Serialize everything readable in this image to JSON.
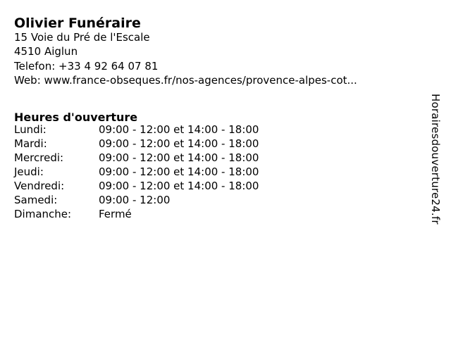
{
  "business": {
    "name": "Olivier Funéraire",
    "address_line1": "15 Voie du Pré de l'Escale",
    "address_line2": "4510 Aiglun",
    "phone_label": "Telefon:",
    "phone_value": "+33 4 92 64 07 81",
    "web_label": "Web:",
    "web_value": "www.france-obseques.fr/nos-agences/provence-alpes-cot..."
  },
  "hours": {
    "heading": "Heures d'ouverture",
    "rows": [
      {
        "day": "Lundi:",
        "time": "09:00 - 12:00 et 14:00 - 18:00"
      },
      {
        "day": "Mardi:",
        "time": "09:00 - 12:00 et 14:00 - 18:00"
      },
      {
        "day": "Mercredi:",
        "time": "09:00 - 12:00 et 14:00 - 18:00"
      },
      {
        "day": "Jeudi:",
        "time": "09:00 - 12:00 et 14:00 - 18:00"
      },
      {
        "day": "Vendredi:",
        "time": "09:00 - 12:00 et 14:00 - 18:00"
      },
      {
        "day": "Samedi:",
        "time": "09:00 - 12:00"
      },
      {
        "day": "Dimanche:",
        "time": "Fermé"
      }
    ]
  },
  "watermark": "Horairesdouverture24.fr",
  "colors": {
    "text": "#000000",
    "background": "#ffffff"
  }
}
